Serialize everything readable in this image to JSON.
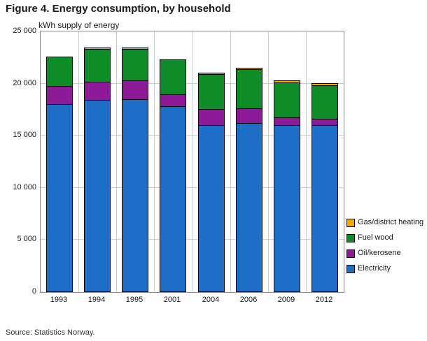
{
  "chart_data": {
    "type": "bar",
    "stacked": true,
    "title": "Figure 4. Energy consumption, by household",
    "ylabel": "kWh supply of energy",
    "xlabel": "",
    "categories": [
      "1993",
      "1994",
      "1995",
      "2001",
      "2004",
      "2006",
      "2009",
      "2012"
    ],
    "series": [
      {
        "name": "Electricity",
        "color": "#1d6ec7",
        "values": [
          18000,
          18400,
          18500,
          17800,
          16000,
          16200,
          16000,
          16000
        ]
      },
      {
        "name": "Oil/kerosene",
        "color": "#8d1b97",
        "values": [
          1800,
          1800,
          1900,
          1200,
          1600,
          1500,
          800,
          700
        ]
      },
      {
        "name": "Fuel wood",
        "color": "#0d8c28",
        "values": [
          2900,
          3200,
          3100,
          3400,
          3400,
          3800,
          3400,
          3300
        ]
      },
      {
        "name": "Gas/district heating",
        "color": "#f5a800",
        "values": [
          0,
          100,
          100,
          0,
          100,
          150,
          250,
          250
        ]
      }
    ],
    "ylim": [
      0,
      25000
    ],
    "ytick_step": 5000,
    "ytick_labels": [
      "0",
      "5 000",
      "10 000",
      "15 000",
      "20 000",
      "25 000"
    ],
    "grid": true,
    "legend_position": "right-bottom",
    "legend_order": [
      "Gas/district heating",
      "Fuel wood",
      "Oil/kerosene",
      "Electricity"
    ]
  },
  "source": "Source: Statistics Norway."
}
